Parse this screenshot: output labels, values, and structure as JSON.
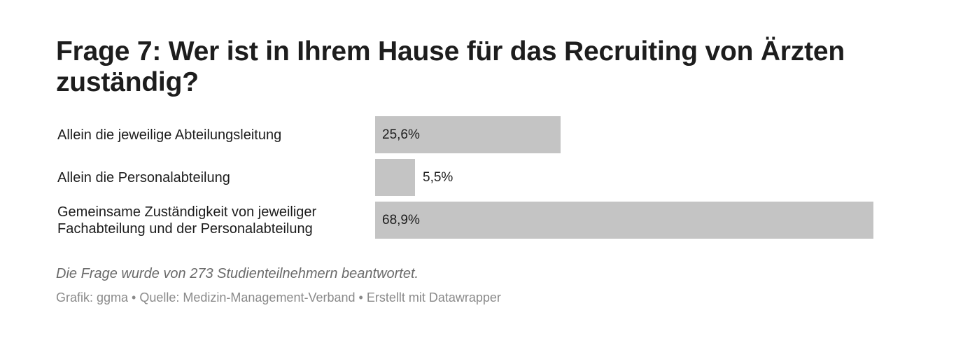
{
  "chart_data": {
    "type": "bar",
    "orientation": "horizontal",
    "title": "Frage 7: Wer ist in Ihrem Hause für das Recruiting von Ärzten zuständig?",
    "categories": [
      [
        "Allein die jeweilige Abteilungsleitung"
      ],
      [
        "Allein die Personalabteilung"
      ],
      [
        "Gemeinsame Zuständigkeit von jeweiliger",
        "Fachabteilung und der Personalabteilung"
      ]
    ],
    "values": [
      25.6,
      5.5,
      68.9
    ],
    "value_labels": [
      "25,6%",
      "5,5%",
      "68,9%"
    ],
    "unit": "%",
    "xlim": [
      0,
      68.9
    ],
    "bar_color": "#c4c4c4",
    "notes": "Die Frage wurde von 273 Studienteilnehmern beantwortet.",
    "footer": "Grafik: ggma • Quelle: Medizin-Management-Verband • Erstellt mit Datawrapper"
  }
}
